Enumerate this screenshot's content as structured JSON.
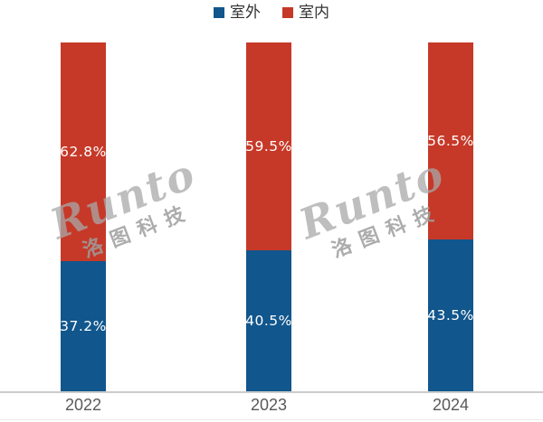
{
  "watermark": {
    "brand": "Runto",
    "company": "洛图科技"
  },
  "colors": {
    "outdoor_blue": "#11568C",
    "indoor_red": "#C63928",
    "axis_line": "#cccccc",
    "tick_label": "#595959",
    "value_label": "#ffffff",
    "watermark_gray": "#a8a8a8"
  },
  "chart_data": {
    "type": "bar",
    "stacked": true,
    "title": "",
    "xlabel": "",
    "ylabel": "",
    "unit": "%",
    "ylim": [
      0,
      100
    ],
    "grid": false,
    "legend_position": "top-center",
    "categories": [
      "2022",
      "2023",
      "2024"
    ],
    "series": [
      {
        "name": "室外",
        "color": "#11568C",
        "values": [
          37.2,
          40.5,
          43.5
        ]
      },
      {
        "name": "室内",
        "color": "#C63928",
        "values": [
          62.8,
          59.5,
          56.5
        ]
      }
    ],
    "value_labels": {
      "室外": [
        "37.2%",
        "40.5%",
        "43.5%"
      ],
      "室内": [
        "62.8%",
        "59.5%",
        "56.5%"
      ]
    }
  }
}
